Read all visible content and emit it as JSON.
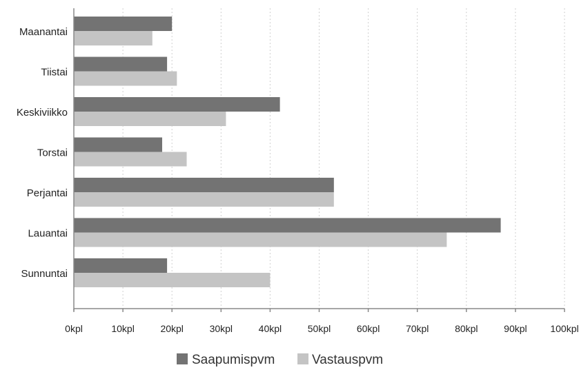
{
  "chart_data": {
    "type": "bar",
    "orientation": "horizontal",
    "categories": [
      "Maanantai",
      "Tiistai",
      "Keskiviikko",
      "Torstai",
      "Perjantai",
      "Lauantai",
      "Sunnuntai"
    ],
    "series": [
      {
        "name": "Saapumispvm",
        "color": "#737373",
        "values": [
          20,
          19,
          42,
          18,
          53,
          87,
          19
        ]
      },
      {
        "name": "Vastauspvm",
        "color": "#c4c4c4",
        "values": [
          16,
          21,
          31,
          23,
          53,
          76,
          40
        ]
      }
    ],
    "xlim": [
      0,
      100
    ],
    "x_ticks": [
      "0kpl",
      "10kpl",
      "20kpl",
      "30kpl",
      "40kpl",
      "50kpl",
      "60kpl",
      "70kpl",
      "80kpl",
      "90kpl",
      "100kpl"
    ],
    "grid": "vertical dotted",
    "legend_position": "bottom-center"
  }
}
